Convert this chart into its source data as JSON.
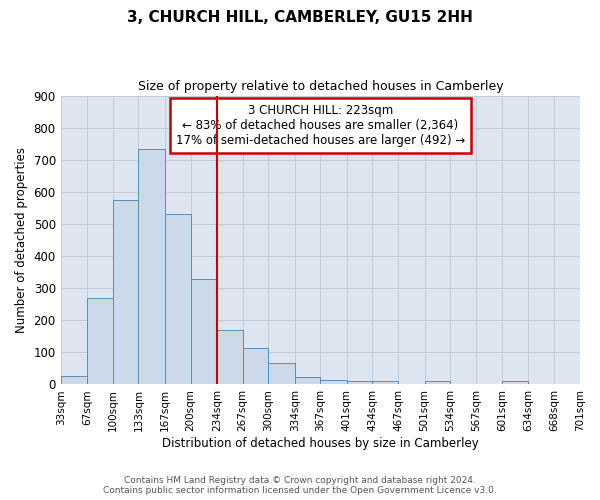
{
  "title_line1": "3, CHURCH HILL, CAMBERLEY, GU15 2HH",
  "title_line2": "Size of property relative to detached houses in Camberley",
  "xlabel": "Distribution of detached houses by size in Camberley",
  "ylabel": "Number of detached properties",
  "bin_edges": [
    33,
    67,
    100,
    133,
    167,
    200,
    234,
    267,
    300,
    334,
    367,
    401,
    434,
    467,
    501,
    534,
    567,
    601,
    634,
    668,
    701
  ],
  "bar_heights": [
    27,
    270,
    575,
    735,
    530,
    330,
    170,
    115,
    68,
    22,
    13,
    10,
    10,
    0,
    10,
    0,
    0,
    10,
    0,
    0
  ],
  "bar_facecolor": "#ccd9e8",
  "bar_edgecolor": "#5b8db8",
  "vline_x": 234,
  "vline_color": "#cc0000",
  "ylim": [
    0,
    900
  ],
  "yticks": [
    0,
    100,
    200,
    300,
    400,
    500,
    600,
    700,
    800,
    900
  ],
  "annotation_title": "3 CHURCH HILL: 223sqm",
  "annotation_line1": "← 83% of detached houses are smaller (2,364)",
  "annotation_line2": "17% of semi-detached houses are larger (492) →",
  "annotation_box_color": "#cc0000",
  "grid_color": "#c0ccd8",
  "background_color": "#dde6f0",
  "footer_line1": "Contains HM Land Registry data © Crown copyright and database right 2024.",
  "footer_line2": "Contains public sector information licensed under the Open Government Licence v3.0."
}
